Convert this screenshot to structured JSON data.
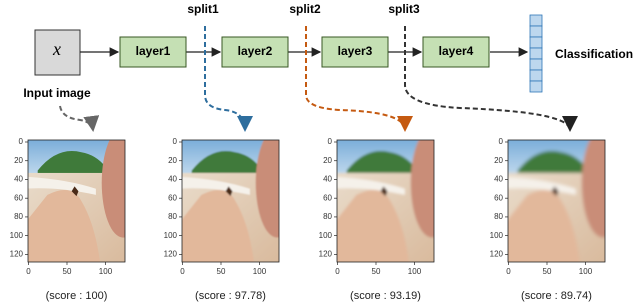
{
  "pipeline": {
    "input": "x",
    "input_caption": "Input image",
    "layers": [
      "layer1",
      "layer2",
      "layer3",
      "layer4"
    ],
    "output": "Classification"
  },
  "splits": [
    "split1",
    "split2",
    "split3"
  ],
  "axes": {
    "xticks": [
      "0",
      "50",
      "100"
    ],
    "yticks": [
      "0",
      "20",
      "40",
      "60",
      "80",
      "100",
      "120"
    ]
  },
  "panels": [
    {
      "score": "(score : 100)"
    },
    {
      "score": "(score : 97.78)"
    },
    {
      "score": "(score : 93.19)"
    },
    {
      "score": "(score : 89.74)"
    }
  ]
}
